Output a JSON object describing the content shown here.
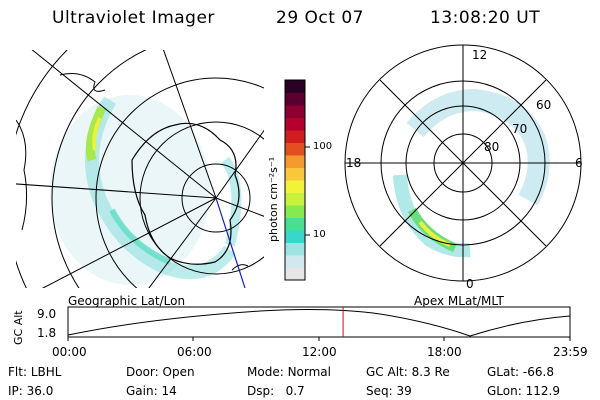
{
  "header": {
    "title": "Ultraviolet Imager",
    "date": "29 Oct 07",
    "time": "13:08:20 UT"
  },
  "panels": {
    "left_label": "Geographic Lat/Lon",
    "right_label": "Apex MLat/MLT",
    "right_ticks": {
      "top": "12",
      "left": "18",
      "right": "6",
      "bottom": "0",
      "rings": [
        "60",
        "70",
        "80"
      ]
    }
  },
  "colorbar": {
    "unit_label": "photon cm⁻²s⁻¹",
    "ticks": [
      "100",
      "10"
    ],
    "colors": [
      "#e6e6e6",
      "#cfe9ee",
      "#9ee3e3",
      "#37d7cc",
      "#47e08e",
      "#84ea4f",
      "#c8f03c",
      "#f3f23a",
      "#f9c73b",
      "#f49a2e",
      "#e25022",
      "#cf1d1e",
      "#b5002d",
      "#8e0030",
      "#5a0031",
      "#2a0023"
    ]
  },
  "timeline": {
    "ylabel": "GC Alt",
    "y_ticks": [
      "9.0",
      "1.8"
    ],
    "x_ticks": [
      "00:00",
      "06:00",
      "12:00",
      "18:00",
      "23:59"
    ],
    "current_time_fraction": 0.548
  },
  "status": {
    "filter": {
      "label": "Flt:",
      "value": "LBHL"
    },
    "door": {
      "label": "Door:",
      "value": "Open"
    },
    "mode": {
      "label": "Mode:",
      "value": "Normal"
    },
    "gc_alt": {
      "label": "GC Alt:",
      "value": "8.3 Re"
    },
    "glat": {
      "label": "GLat:",
      "value": "-66.8"
    },
    "ip": {
      "label": "IP:",
      "value": "36.0"
    },
    "gain": {
      "label": "Gain:",
      "value": "14"
    },
    "dsp": {
      "label": "Dsp:",
      "value": "0.7"
    },
    "seq": {
      "label": "Seq:",
      "value": "39"
    },
    "glon": {
      "label": "GLon:",
      "value": "112.9"
    }
  }
}
